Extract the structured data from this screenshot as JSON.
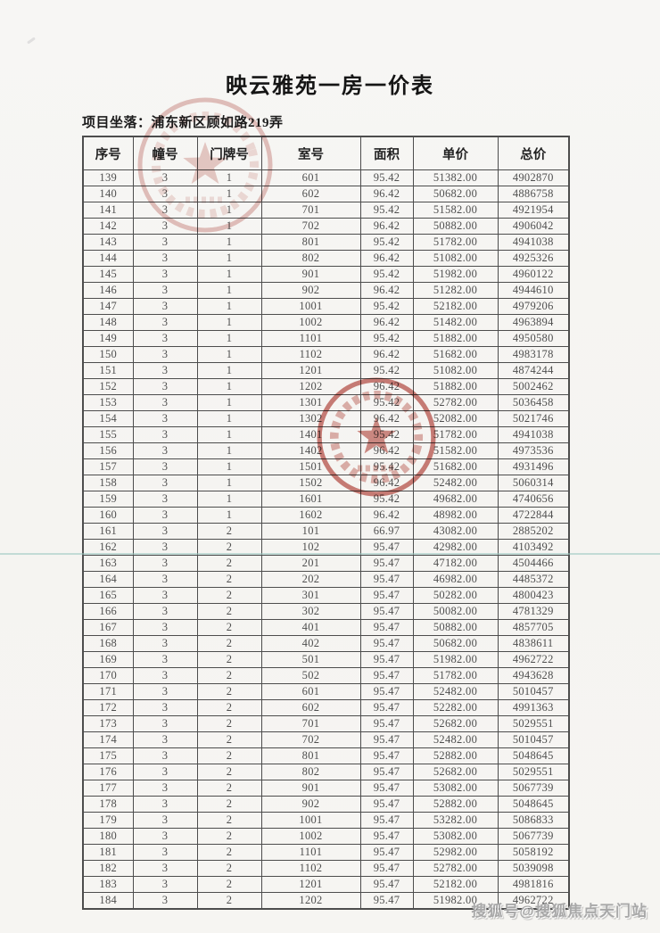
{
  "page": {
    "title": "映云雅苑一房一价表",
    "location_label": "项目坐落：",
    "location_value": "浦东新区顾如路219弄",
    "watermark": "搜狐号@搜狐焦点天门站"
  },
  "colors": {
    "seal_red": "#b5443a",
    "seal_red_faded": "#c4726a",
    "scan_line_teal": "#97c6c0",
    "watermark_gray": "#a8a8a8"
  },
  "table": {
    "headers": [
      "序号",
      "幢号",
      "门牌号",
      "室号",
      "面积",
      "单价",
      "总价"
    ],
    "rows": [
      [
        "139",
        "3",
        "1",
        "601",
        "95.42",
        "51382.00",
        "4902870"
      ],
      [
        "140",
        "3",
        "1",
        "602",
        "96.42",
        "50682.00",
        "4886758"
      ],
      [
        "141",
        "3",
        "1",
        "701",
        "95.42",
        "51582.00",
        "4921954"
      ],
      [
        "142",
        "3",
        "1",
        "702",
        "96.42",
        "50882.00",
        "4906042"
      ],
      [
        "143",
        "3",
        "1",
        "801",
        "95.42",
        "51782.00",
        "4941038"
      ],
      [
        "144",
        "3",
        "1",
        "802",
        "96.42",
        "51082.00",
        "4925326"
      ],
      [
        "145",
        "3",
        "1",
        "901",
        "95.42",
        "51982.00",
        "4960122"
      ],
      [
        "146",
        "3",
        "1",
        "902",
        "96.42",
        "51282.00",
        "4944610"
      ],
      [
        "147",
        "3",
        "1",
        "1001",
        "95.42",
        "52182.00",
        "4979206"
      ],
      [
        "148",
        "3",
        "1",
        "1002",
        "96.42",
        "51482.00",
        "4963894"
      ],
      [
        "149",
        "3",
        "1",
        "1101",
        "95.42",
        "51882.00",
        "4950580"
      ],
      [
        "150",
        "3",
        "1",
        "1102",
        "96.42",
        "51682.00",
        "4983178"
      ],
      [
        "151",
        "3",
        "1",
        "1201",
        "95.42",
        "51082.00",
        "4874244"
      ],
      [
        "152",
        "3",
        "1",
        "1202",
        "96.42",
        "51882.00",
        "5002462"
      ],
      [
        "153",
        "3",
        "1",
        "1301",
        "95.42",
        "52782.00",
        "5036458"
      ],
      [
        "154",
        "3",
        "1",
        "1302",
        "96.42",
        "52082.00",
        "5021746"
      ],
      [
        "155",
        "3",
        "1",
        "1401",
        "95.42",
        "51782.00",
        "4941038"
      ],
      [
        "156",
        "3",
        "1",
        "1402",
        "96.42",
        "51582.00",
        "4973536"
      ],
      [
        "157",
        "3",
        "1",
        "1501",
        "95.42",
        "51682.00",
        "4931496"
      ],
      [
        "158",
        "3",
        "1",
        "1502",
        "96.42",
        "52482.00",
        "5060314"
      ],
      [
        "159",
        "3",
        "1",
        "1601",
        "95.42",
        "49682.00",
        "4740656"
      ],
      [
        "160",
        "3",
        "1",
        "1602",
        "96.42",
        "48982.00",
        "4722844"
      ],
      [
        "161",
        "3",
        "2",
        "101",
        "66.97",
        "43082.00",
        "2885202"
      ],
      [
        "162",
        "3",
        "2",
        "102",
        "95.47",
        "42982.00",
        "4103492"
      ],
      [
        "163",
        "3",
        "2",
        "201",
        "95.47",
        "47182.00",
        "4504466"
      ],
      [
        "164",
        "3",
        "2",
        "202",
        "95.47",
        "46982.00",
        "4485372"
      ],
      [
        "165",
        "3",
        "2",
        "301",
        "95.47",
        "50282.00",
        "4800423"
      ],
      [
        "166",
        "3",
        "2",
        "302",
        "95.47",
        "50082.00",
        "4781329"
      ],
      [
        "167",
        "3",
        "2",
        "401",
        "95.47",
        "50882.00",
        "4857705"
      ],
      [
        "168",
        "3",
        "2",
        "402",
        "95.47",
        "50682.00",
        "4838611"
      ],
      [
        "169",
        "3",
        "2",
        "501",
        "95.47",
        "51982.00",
        "4962722"
      ],
      [
        "170",
        "3",
        "2",
        "502",
        "95.47",
        "51782.00",
        "4943628"
      ],
      [
        "171",
        "3",
        "2",
        "601",
        "95.47",
        "52482.00",
        "5010457"
      ],
      [
        "172",
        "3",
        "2",
        "602",
        "95.47",
        "52282.00",
        "4991363"
      ],
      [
        "173",
        "3",
        "2",
        "701",
        "95.47",
        "52682.00",
        "5029551"
      ],
      [
        "174",
        "3",
        "2",
        "702",
        "95.47",
        "52482.00",
        "5010457"
      ],
      [
        "175",
        "3",
        "2",
        "801",
        "95.47",
        "52882.00",
        "5048645"
      ],
      [
        "176",
        "3",
        "2",
        "802",
        "95.47",
        "52682.00",
        "5029551"
      ],
      [
        "177",
        "3",
        "2",
        "901",
        "95.47",
        "53082.00",
        "5067739"
      ],
      [
        "178",
        "3",
        "2",
        "902",
        "95.47",
        "52882.00",
        "5048645"
      ],
      [
        "179",
        "3",
        "2",
        "1001",
        "95.47",
        "53282.00",
        "5086833"
      ],
      [
        "180",
        "3",
        "2",
        "1002",
        "95.47",
        "53082.00",
        "5067739"
      ],
      [
        "181",
        "3",
        "2",
        "1101",
        "95.47",
        "52982.00",
        "5058192"
      ],
      [
        "182",
        "3",
        "2",
        "1102",
        "95.47",
        "52782.00",
        "5039098"
      ],
      [
        "183",
        "3",
        "2",
        "1201",
        "95.47",
        "52182.00",
        "4981816"
      ],
      [
        "184",
        "3",
        "2",
        "1202",
        "95.47",
        "51982.00",
        "4962722"
      ]
    ]
  }
}
